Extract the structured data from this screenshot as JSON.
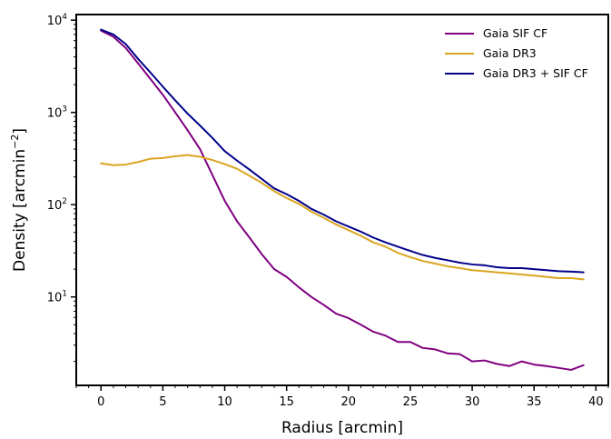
{
  "chart_data": {
    "type": "line",
    "title": "",
    "xlabel": "Radius [arcmin]",
    "ylabel_main": "Density [arcmin",
    "ylabel_exp": "−2",
    "ylabel_close": "]",
    "xlim": [
      -2,
      41
    ],
    "ylim": [
      1.1,
      11500
    ],
    "yscale": "log",
    "grid": false,
    "legend_position": "top-right",
    "xticks": [
      {
        "value": 0,
        "label": "0"
      },
      {
        "value": 5,
        "label": "5"
      },
      {
        "value": 10,
        "label": "10"
      },
      {
        "value": 15,
        "label": "15"
      },
      {
        "value": 20,
        "label": "20"
      },
      {
        "value": 25,
        "label": "25"
      },
      {
        "value": 30,
        "label": "30"
      },
      {
        "value": 35,
        "label": "35"
      },
      {
        "value": 40,
        "label": "40"
      }
    ],
    "yticks": [
      {
        "value": 10,
        "base": "10",
        "exp": "1"
      },
      {
        "value": 100,
        "base": "10",
        "exp": "2"
      },
      {
        "value": 1000,
        "base": "10",
        "exp": "3"
      },
      {
        "value": 10000,
        "base": "10",
        "exp": "4"
      }
    ],
    "x": [
      0,
      1,
      2,
      3,
      4,
      5,
      6,
      7,
      8,
      9,
      10,
      11,
      12,
      13,
      14,
      15,
      16,
      17,
      18,
      19,
      20,
      21,
      22,
      23,
      24,
      25,
      26,
      27,
      28,
      29,
      30,
      31,
      32,
      33,
      34,
      35,
      36,
      37,
      38,
      39
    ],
    "series": [
      {
        "name": "Gaia SIF CF",
        "color": "#800080",
        "values": [
          7700,
          6600,
          5000,
          3400,
          2300,
          1550,
          1000,
          640,
          400,
          210,
          110,
          66,
          44,
          29,
          20,
          16.5,
          12.7,
          10,
          8.2,
          6.6,
          5.9,
          5.0,
          4.2,
          3.8,
          3.25,
          3.25,
          2.8,
          2.7,
          2.45,
          2.4,
          2.0,
          2.05,
          1.88,
          1.78,
          2.0,
          1.85,
          1.78,
          1.7,
          1.62,
          1.82
        ]
      },
      {
        "name": "Gaia DR3",
        "color": "#DAA520",
        "values": [
          280,
          268,
          272,
          290,
          315,
          320,
          335,
          345,
          330,
          305,
          275,
          245,
          205,
          172,
          140,
          118,
          102,
          84,
          72,
          61,
          53,
          46,
          39,
          35,
          30,
          27,
          24.5,
          23,
          21.5,
          20.5,
          19.5,
          19,
          18.5,
          18,
          17.5,
          17,
          16.5,
          16,
          16,
          15.5
        ]
      },
      {
        "name": "Gaia DR3 + SIF CF",
        "color": "#00008B",
        "values": [
          7900,
          7000,
          5500,
          3800,
          2700,
          1900,
          1350,
          970,
          720,
          530,
          380,
          300,
          240,
          190,
          150,
          130,
          110,
          90,
          78,
          66,
          58,
          51,
          44,
          39,
          35,
          31.5,
          28.5,
          26.5,
          25,
          23.5,
          22.5,
          22,
          21,
          20.5,
          20.5,
          20,
          19.5,
          19,
          18.8,
          18.5
        ]
      }
    ]
  }
}
